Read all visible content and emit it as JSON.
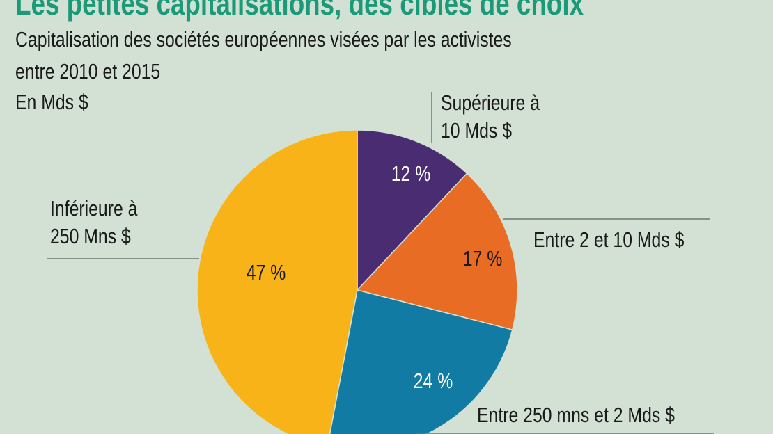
{
  "chart_data": {
    "type": "pie",
    "title": "Les petites capitalisations, des cibles de choix",
    "subtitle": [
      "Capitalisation des sociétés européennes visées par les activistes",
      "entre 2010 et 2015"
    ],
    "unit": "En Mds $",
    "slices": [
      {
        "label": "Supérieure à 10 Mds $",
        "label_lines": [
          "Supérieure à",
          "10 Mds $"
        ],
        "value": 12,
        "value_label": "12 %",
        "color": "#4a2c73",
        "text_color": "#ffffff"
      },
      {
        "label": "Entre 2 et 10 Mds $",
        "label_lines": [
          "Entre 2 et 10 Mds $"
        ],
        "value": 17,
        "value_label": "17 %",
        "color": "#e86c23",
        "text_color": "#1a1a1a"
      },
      {
        "label": "Entre 250 mns et 2 Mds $",
        "label_lines": [
          "Entre 250 mns et 2 Mds $"
        ],
        "value": 24,
        "value_label": "24 %",
        "color": "#127ba3",
        "text_color": "#ffffff"
      },
      {
        "label": "Inférieure à 250 Mns $",
        "label_lines": [
          "Inférieure à",
          "250 Mns $"
        ],
        "value": 47,
        "value_label": "47 %",
        "color": "#f8b319",
        "text_color": "#1a1a1a"
      }
    ]
  },
  "colors": {
    "background": "#d3e0d4",
    "title": "#1a9a78"
  }
}
